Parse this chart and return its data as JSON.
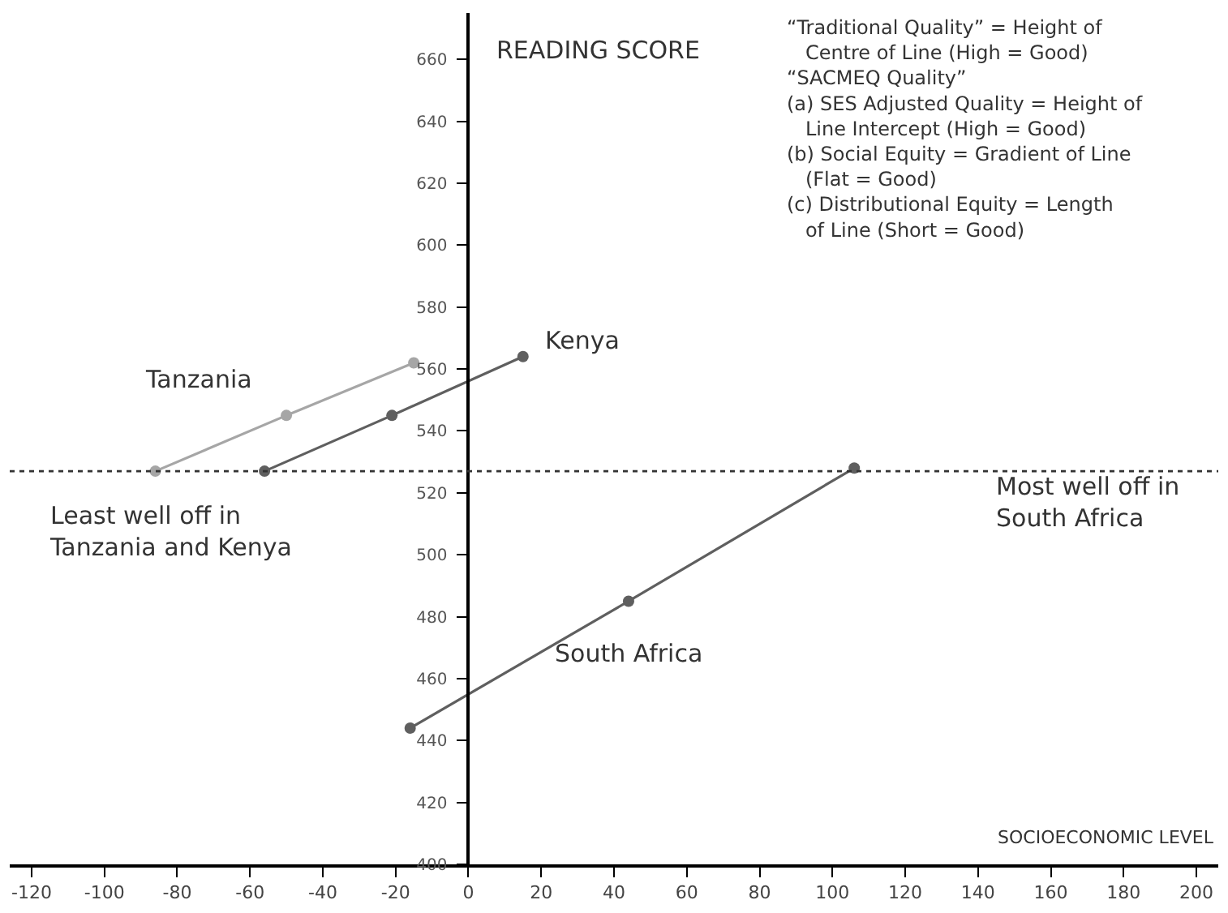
{
  "chart_data": {
    "type": "line",
    "xlabel": "SOCIOECONOMIC LEVEL",
    "ylabel": "READING SCORE",
    "xlim": [
      -126,
      206
    ],
    "ylim": [
      400,
      675
    ],
    "xticks": [
      -120,
      -100,
      -80,
      -60,
      -40,
      -20,
      0,
      20,
      40,
      60,
      80,
      100,
      120,
      140,
      160,
      180,
      200
    ],
    "yticks": [
      400,
      420,
      440,
      460,
      480,
      500,
      520,
      540,
      560,
      580,
      600,
      620,
      640,
      660
    ],
    "series": [
      {
        "name": "Tanzania",
        "color": "#a6a6a6",
        "x": [
          -86,
          -50,
          -15
        ],
        "values": [
          527,
          545,
          562
        ]
      },
      {
        "name": "Kenya",
        "color": "#5f5f5f",
        "x": [
          -56,
          -21,
          15
        ],
        "values": [
          527,
          545,
          564
        ]
      },
      {
        "name": "South Africa",
        "color": "#5f5f5f",
        "x": [
          -16,
          44,
          106
        ],
        "values": [
          444,
          485,
          528
        ]
      }
    ],
    "marker": "circle",
    "line_style": "solid",
    "legend": false,
    "ref_lines": [
      {
        "axis": "y",
        "value": 527,
        "color": "#333333",
        "line_style": "dotted"
      }
    ],
    "annotations": [
      "Least well off in Tanzania and Kenya",
      "Most well off in South Africa",
      "“Traditional Quality” = Height of Centre of Line (High = Good)",
      "“SACMEQ Quality”",
      "(a) SES Adjusted Quality = Height of Line Intercept (High = Good)",
      "(b) Social Equity = Gradient of Line (Flat = Good)",
      "(c) Distributional Equity = Length of Line (Short = Good)"
    ]
  }
}
